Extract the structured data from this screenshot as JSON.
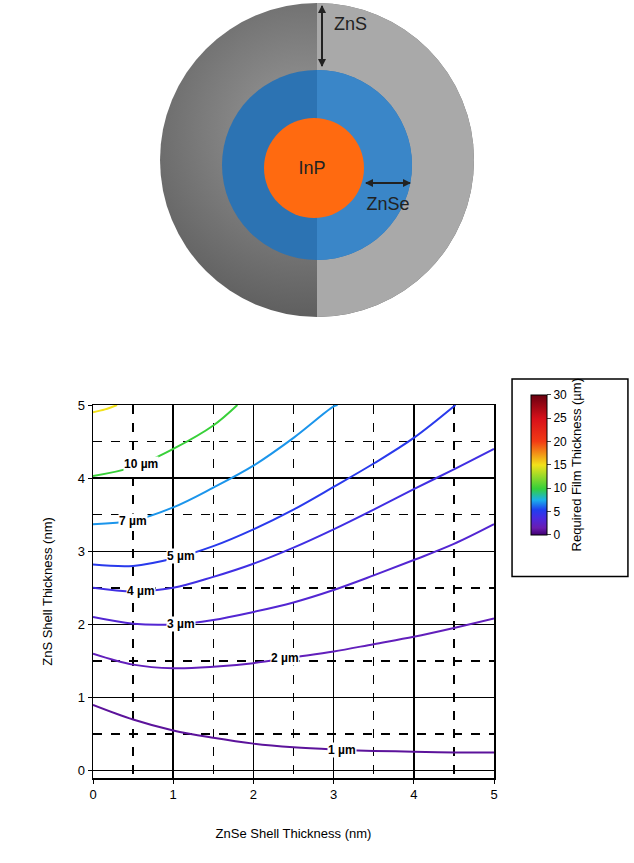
{
  "diagram": {
    "layers": [
      {
        "label": "InP"
      },
      {
        "label": "ZnSe"
      },
      {
        "label": "ZnS"
      }
    ]
  },
  "chart_data": {
    "type": "contour",
    "x_label": "ZnSe Shell Thickness (nm)",
    "y_label": "ZnS Shell Thickness (nm)",
    "xlim": [
      0,
      5
    ],
    "ylim": [
      -0.1,
      5
    ],
    "xticks": [
      0,
      1,
      2,
      3,
      4,
      5
    ],
    "yticks": [
      0,
      1,
      2,
      3,
      4,
      5
    ],
    "grid": true,
    "colorbar": {
      "title": "Required Film Thickness (µm)",
      "range": [
        0,
        30
      ],
      "ticks": [
        0,
        5,
        10,
        15,
        20,
        25,
        30
      ]
    },
    "series": [
      {
        "name": "1 µm",
        "level": 1,
        "x": [
          0,
          0.5,
          1,
          1.5,
          2,
          2.5,
          3,
          3.5,
          4,
          4.5,
          5
        ],
        "y": [
          0.9,
          0.7,
          0.55,
          0.45,
          0.37,
          0.32,
          0.29,
          0.27,
          0.26,
          0.25,
          0.25
        ]
      },
      {
        "name": "2 µm",
        "level": 2,
        "x": [
          0,
          0.5,
          1,
          1.5,
          2,
          2.5,
          3,
          3.5,
          4,
          4.5,
          5
        ],
        "y": [
          1.6,
          1.45,
          1.4,
          1.42,
          1.47,
          1.55,
          1.63,
          1.73,
          1.83,
          1.95,
          2.08
        ]
      },
      {
        "name": "3 µm",
        "level": 3,
        "x": [
          0,
          0.5,
          1,
          1.5,
          2,
          2.5,
          3,
          3.5,
          4,
          4.5,
          5
        ],
        "y": [
          2.1,
          2.01,
          2.0,
          2.06,
          2.17,
          2.3,
          2.47,
          2.67,
          2.88,
          3.1,
          3.37
        ]
      },
      {
        "name": "4 µm",
        "level": 4,
        "x": [
          0,
          0.5,
          1,
          1.5,
          2,
          2.5,
          3,
          3.5,
          4,
          4.5,
          5
        ],
        "y": [
          2.5,
          2.45,
          2.5,
          2.65,
          2.83,
          3.05,
          3.3,
          3.57,
          3.85,
          4.12,
          4.4
        ]
      },
      {
        "name": "5 µm",
        "level": 5,
        "x": [
          0,
          0.5,
          1,
          1.5,
          2,
          2.5,
          3,
          3.5,
          4,
          4.52
        ],
        "y": [
          2.82,
          2.8,
          2.9,
          3.07,
          3.3,
          3.57,
          3.88,
          4.2,
          4.55,
          5
        ]
      },
      {
        "name": "7 µm",
        "level": 7,
        "x": [
          0,
          0.5,
          1,
          1.5,
          2,
          2.5,
          3,
          3.05
        ],
        "y": [
          3.37,
          3.42,
          3.6,
          3.87,
          4.17,
          4.55,
          4.98,
          5
        ]
      },
      {
        "name": "10 µm",
        "level": 10,
        "x": [
          0,
          0.5,
          1,
          1.5,
          1.8
        ],
        "y": [
          4.03,
          4.15,
          4.4,
          4.72,
          5
        ]
      },
      {
        "level": 15,
        "x": [
          0,
          0.15,
          0.3
        ],
        "y": [
          4.9,
          4.94,
          5
        ]
      }
    ]
  }
}
